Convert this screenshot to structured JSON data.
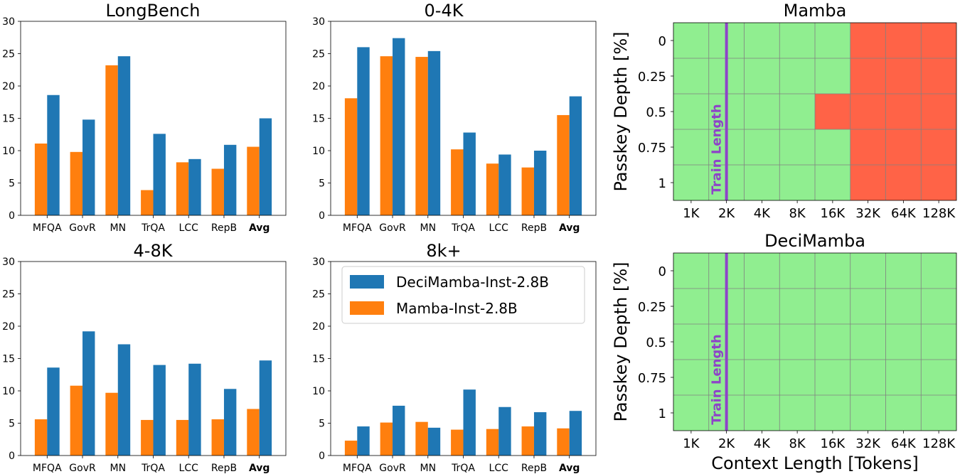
{
  "colors": {
    "mamba": "#ff7f0e",
    "decimamba": "#1f77b4",
    "pass": "#90ee90",
    "fail": "#ff6347",
    "train_line": "#8e44c8",
    "grid": "#808080"
  },
  "legend": {
    "decimamba": "DeciMamba-Inst-2.8B",
    "mamba": "Mamba-Inst-2.8B",
    "placement": "upper-left of 8k+ panel"
  },
  "chart_data": [
    {
      "type": "bar",
      "title": "LongBench",
      "categories": [
        "MFQA",
        "GovR",
        "MN",
        "TrQA",
        "LCC",
        "RepB",
        "Avg"
      ],
      "bold_category": "Avg",
      "ylim": [
        0,
        30
      ],
      "yticks": [
        "0",
        "5",
        "10",
        "15",
        "20",
        "25",
        "30"
      ],
      "series": [
        {
          "name": "Mamba-Inst-2.8B",
          "color_key": "mamba",
          "values": [
            11.1,
            9.8,
            23.2,
            3.9,
            8.2,
            7.2,
            10.6
          ]
        },
        {
          "name": "DeciMamba-Inst-2.8B",
          "color_key": "decimamba",
          "values": [
            18.6,
            14.8,
            24.6,
            12.6,
            8.7,
            10.9,
            15.0
          ]
        }
      ]
    },
    {
      "type": "bar",
      "title": "0-4K",
      "categories": [
        "MFQA",
        "GovR",
        "MN",
        "TrQA",
        "LCC",
        "RepB",
        "Avg"
      ],
      "bold_category": "Avg",
      "ylim": [
        0,
        30
      ],
      "yticks": [
        "0",
        "5",
        "10",
        "15",
        "20",
        "25",
        "30"
      ],
      "series": [
        {
          "name": "Mamba-Inst-2.8B",
          "color_key": "mamba",
          "values": [
            18.1,
            24.6,
            24.5,
            10.2,
            8.0,
            7.4,
            15.5
          ]
        },
        {
          "name": "DeciMamba-Inst-2.8B",
          "color_key": "decimamba",
          "values": [
            26.0,
            27.4,
            25.4,
            12.8,
            9.4,
            10.0,
            18.4
          ]
        }
      ]
    },
    {
      "type": "bar",
      "title": "4-8K",
      "categories": [
        "MFQA",
        "GovR",
        "MN",
        "TrQA",
        "LCC",
        "RepB",
        "Avg"
      ],
      "bold_category": "Avg",
      "ylim": [
        0,
        30
      ],
      "yticks": [
        "0",
        "5",
        "10",
        "15",
        "20",
        "25",
        "30"
      ],
      "series": [
        {
          "name": "Mamba-Inst-2.8B",
          "color_key": "mamba",
          "values": [
            5.6,
            10.8,
            9.7,
            5.5,
            5.5,
            5.6,
            7.2
          ]
        },
        {
          "name": "DeciMamba-Inst-2.8B",
          "color_key": "decimamba",
          "values": [
            13.6,
            19.2,
            17.2,
            14.0,
            14.2,
            10.3,
            14.7
          ]
        }
      ]
    },
    {
      "type": "bar",
      "title": "8k+",
      "categories": [
        "MFQA",
        "GovR",
        "MN",
        "TrQA",
        "LCC",
        "RepB",
        "Avg"
      ],
      "bold_category": "Avg",
      "ylim": [
        0,
        30
      ],
      "yticks": [
        "0",
        "5",
        "10",
        "15",
        "20",
        "25",
        "30"
      ],
      "series": [
        {
          "name": "Mamba-Inst-2.8B",
          "color_key": "mamba",
          "values": [
            2.3,
            5.1,
            5.2,
            4.0,
            4.1,
            4.5,
            4.2
          ]
        },
        {
          "name": "DeciMamba-Inst-2.8B",
          "color_key": "decimamba",
          "values": [
            4.5,
            7.7,
            4.3,
            10.2,
            7.5,
            6.7,
            6.9
          ]
        }
      ]
    },
    {
      "type": "heatmap",
      "title": "Mamba",
      "xlabel": "",
      "ylabel": "Passkey Depth [%]",
      "x_categories": [
        "1K",
        "2K",
        "4K",
        "8K",
        "16K",
        "32K",
        "64K",
        "128K"
      ],
      "y_categories": [
        "0",
        "0.25",
        "0.5",
        "0.75",
        "1"
      ],
      "train_length_label": "Train Length",
      "train_length_at": "2K",
      "status": [
        [
          1,
          1,
          1,
          1,
          1,
          0,
          0,
          0
        ],
        [
          1,
          1,
          1,
          1,
          1,
          0,
          0,
          0
        ],
        [
          1,
          1,
          1,
          1,
          0,
          0,
          0,
          0
        ],
        [
          1,
          1,
          1,
          1,
          1,
          0,
          0,
          0
        ],
        [
          1,
          1,
          1,
          1,
          1,
          0,
          0,
          0
        ]
      ]
    },
    {
      "type": "heatmap",
      "title": "DeciMamba",
      "xlabel": "Context Length [Tokens]",
      "ylabel": "Passkey Depth [%]",
      "x_categories": [
        "1K",
        "2K",
        "4K",
        "8K",
        "16K",
        "32K",
        "64K",
        "128K"
      ],
      "y_categories": [
        "0",
        "0.25",
        "0.5",
        "0.75",
        "1"
      ],
      "train_length_label": "Train Length",
      "train_length_at": "2K",
      "status": [
        [
          1,
          1,
          1,
          1,
          1,
          1,
          1,
          1
        ],
        [
          1,
          1,
          1,
          1,
          1,
          1,
          1,
          1
        ],
        [
          1,
          1,
          1,
          1,
          1,
          1,
          1,
          1
        ],
        [
          1,
          1,
          1,
          1,
          1,
          1,
          1,
          1
        ],
        [
          1,
          1,
          1,
          1,
          1,
          1,
          1,
          1
        ]
      ]
    }
  ]
}
